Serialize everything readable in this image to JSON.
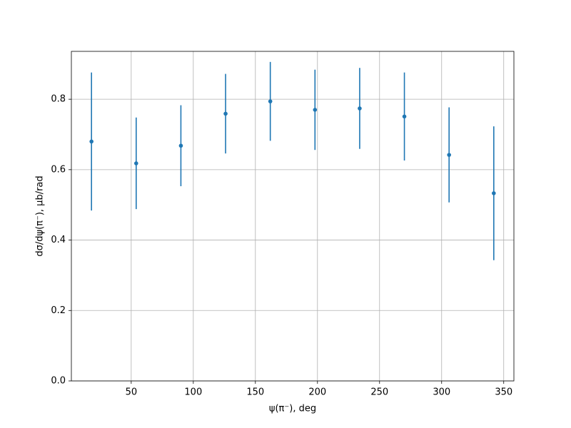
{
  "chart_data": {
    "type": "errorbar",
    "x_label": "ψ(π⁻), deg",
    "y_label": "dσ/dψ(π⁻), μb/rad",
    "x": [
      18,
      54,
      90,
      126,
      162,
      198,
      234,
      270,
      306,
      342
    ],
    "values": [
      0.68,
      0.618,
      0.668,
      0.759,
      0.794,
      0.77,
      0.774,
      0.751,
      0.642,
      0.533
    ],
    "errors": [
      0.196,
      0.13,
      0.115,
      0.113,
      0.112,
      0.114,
      0.115,
      0.125,
      0.135,
      0.19
    ],
    "color": "#1f77b4",
    "xlim": [
      1.8,
      358.2
    ],
    "xticks": [
      50,
      100,
      150,
      200,
      250,
      300,
      350
    ],
    "ylim": [
      0,
      0.936
    ],
    "yticks": [
      {
        "value": 0,
        "label": "0.0"
      },
      {
        "value": 0.2,
        "label": "0.2"
      },
      {
        "value": 0.4,
        "label": "0.4"
      },
      {
        "value": 0.6,
        "label": "0.6"
      },
      {
        "value": 0.8,
        "label": "0.8"
      }
    ],
    "grid": true
  }
}
